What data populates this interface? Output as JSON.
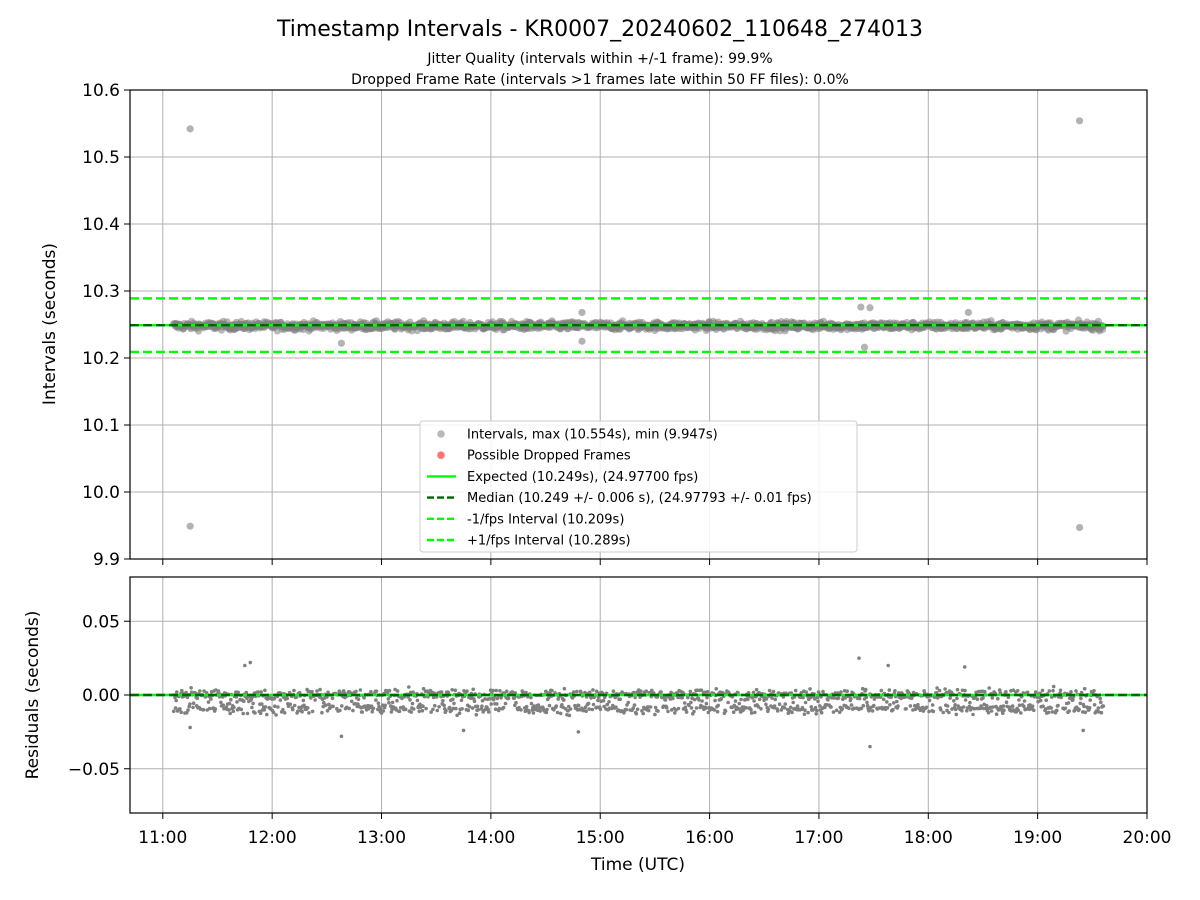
{
  "title": "Timestamp Intervals - KR0007_20240602_110648_274013",
  "subtitle_lines": [
    "Jitter Quality (intervals within +/-1 frame): 99.9%",
    "Dropped Frame Rate (intervals >1 frames late within 50 FF files): 0.0%"
  ],
  "colors": {
    "points": "#808080",
    "dropped": "#ff0000",
    "expected": "#00ff00",
    "median": "#006400",
    "bounds": "#00ff00",
    "grid": "#b0b0b0"
  },
  "chart_data": [
    {
      "type": "scatter",
      "panel": "top",
      "xlabel": "",
      "ylabel": "Intervals (seconds)",
      "xlim": [
        "10:42",
        "20:00"
      ],
      "ylim": [
        9.9,
        10.6
      ],
      "yticks": [
        "9.9",
        "10.0",
        "10.1",
        "10.2",
        "10.3",
        "10.4",
        "10.5",
        "10.6"
      ],
      "grid": true,
      "legend_position": "lower-center",
      "legend": [
        {
          "label": "Intervals, max (10.554s), min (9.947s)",
          "style": "marker",
          "color": "#808080"
        },
        {
          "label": "Possible Dropped Frames",
          "style": "marker",
          "color": "#ff0000"
        },
        {
          "label": "Expected (10.249s), (24.97700 fps)",
          "style": "solid",
          "color": "#00ff00"
        },
        {
          "label": "Median (10.249 +/- 0.006 s), (24.97793 +/- 0.01 fps)",
          "style": "dashed",
          "color": "#006400"
        },
        {
          "label": "-1/fps Interval (10.209s)",
          "style": "dashed",
          "color": "#00ff00"
        },
        {
          "label": "+1/fps Interval (10.289s)",
          "style": "dashed",
          "color": "#00ff00"
        }
      ],
      "reference_lines": [
        {
          "name": "expected",
          "y": 10.249,
          "style": "solid"
        },
        {
          "name": "median",
          "y": 10.249,
          "style": "dashed"
        },
        {
          "name": "minus_one_frame",
          "y": 10.209,
          "style": "dashed"
        },
        {
          "name": "plus_one_frame",
          "y": 10.289,
          "style": "dashed"
        }
      ],
      "series": [
        {
          "name": "Intervals, max (10.554s), min (9.947s)",
          "time_range": [
            "11:06",
            "19:36"
          ],
          "center": 10.248,
          "band": 0.012,
          "outliers": [
            {
              "x": "11:15",
              "y": 10.542
            },
            {
              "x": "11:15",
              "y": 9.949
            },
            {
              "x": "19:23",
              "y": 10.554
            },
            {
              "x": "19:23",
              "y": 9.947
            },
            {
              "x": "12:38",
              "y": 10.222
            },
            {
              "x": "17:23",
              "y": 10.276
            },
            {
              "x": "17:28",
              "y": 10.275
            },
            {
              "x": "17:25",
              "y": 10.216
            },
            {
              "x": "14:50",
              "y": 10.268
            },
            {
              "x": "14:50",
              "y": 10.225
            },
            {
              "x": "18:22",
              "y": 10.268
            }
          ]
        }
      ]
    },
    {
      "type": "scatter",
      "panel": "bottom",
      "xlabel": "Time (UTC)",
      "ylabel": "Residuals (seconds)",
      "xlim": [
        "10:42",
        "20:00"
      ],
      "ylim": [
        -0.08,
        0.08
      ],
      "xticks": [
        "11:00",
        "12:00",
        "13:00",
        "14:00",
        "15:00",
        "16:00",
        "17:00",
        "18:00",
        "19:00",
        "20:00"
      ],
      "yticks": [
        "−0.05",
        "0.00",
        "0.05"
      ],
      "grid": true,
      "reference_lines": [
        {
          "name": "zero",
          "y": 0.0,
          "style": "solid"
        },
        {
          "name": "median_residual",
          "y": 0.0,
          "style": "dashed"
        }
      ],
      "series": [
        {
          "name": "Residuals",
          "time_range": [
            "11:06",
            "19:36"
          ],
          "bands": [
            0.0,
            -0.009
          ],
          "spread": 0.006,
          "extremes": [
            {
              "x": "11:45",
              "y": 0.02
            },
            {
              "x": "11:48",
              "y": 0.022
            },
            {
              "x": "12:38",
              "y": -0.028
            },
            {
              "x": "17:22",
              "y": 0.025
            },
            {
              "x": "17:28",
              "y": -0.035
            },
            {
              "x": "17:38",
              "y": 0.02
            },
            {
              "x": "18:20",
              "y": 0.019
            },
            {
              "x": "14:48",
              "y": -0.025
            },
            {
              "x": "13:45",
              "y": -0.024
            },
            {
              "x": "11:15",
              "y": -0.022
            },
            {
              "x": "19:25",
              "y": -0.024
            }
          ]
        }
      ]
    }
  ]
}
